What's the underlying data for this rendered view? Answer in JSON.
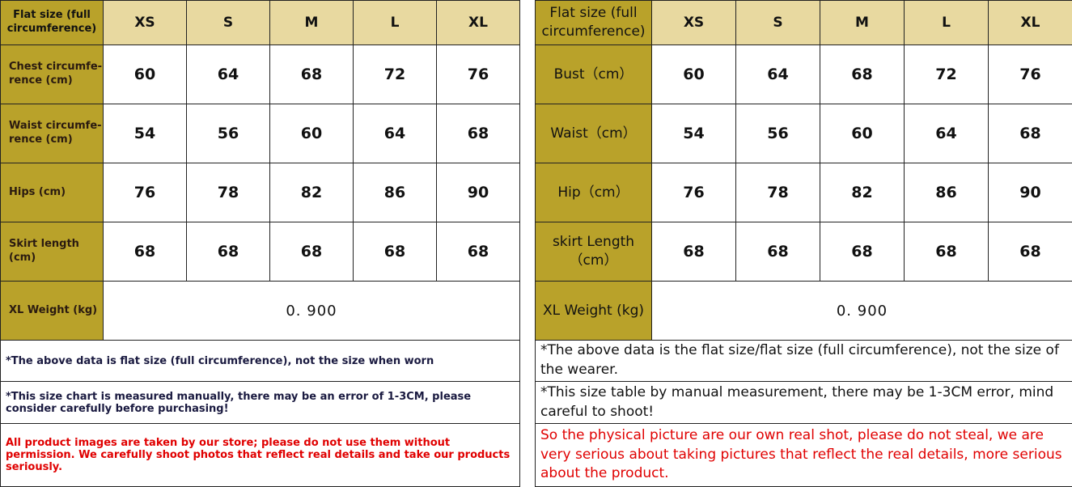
{
  "colors": {
    "label_bg": "#b9a22a",
    "header_bg": "#e8d9a0",
    "warning_text": "#e00000"
  },
  "sizes": [
    "XS",
    "S",
    "M",
    "L",
    "XL"
  ],
  "left": {
    "corner": "Flat size (full circumference)",
    "rows": [
      {
        "label": "Chest circumfe-rence (cm)",
        "values": [
          "60",
          "64",
          "68",
          "72",
          "76"
        ]
      },
      {
        "label": "Waist circumfe-rence (cm)",
        "values": [
          "54",
          "56",
          "60",
          "64",
          "68"
        ]
      },
      {
        "label": "Hips (cm)",
        "values": [
          "76",
          "78",
          "82",
          "86",
          "90"
        ]
      },
      {
        "label": "Skirt length (cm)",
        "values": [
          "68",
          "68",
          "68",
          "68",
          "68"
        ]
      }
    ],
    "weight_label": "XL Weight (kg)",
    "weight_value": "0. 900",
    "notes": [
      "*The above data is flat size (full circumference), not the size when worn",
      "*This size chart is measured manually, there may be an error of 1-3CM, please consider carefully before purchasing!",
      "All product images are taken by our store; please do not use them without permission. We carefully shoot photos that reflect real details and take our products seriously."
    ]
  },
  "right": {
    "corner": "Flat size (full circumference)",
    "rows": [
      {
        "label": "Bust（cm）",
        "values": [
          "60",
          "64",
          "68",
          "72",
          "76"
        ]
      },
      {
        "label": "Waist（cm）",
        "values": [
          "54",
          "56",
          "60",
          "64",
          "68"
        ]
      },
      {
        "label": "Hip（cm）",
        "values": [
          "76",
          "78",
          "82",
          "86",
          "90"
        ]
      },
      {
        "label": "skirt Length（cm）",
        "values": [
          "68",
          "68",
          "68",
          "68",
          "68"
        ]
      }
    ],
    "weight_label": "XL Weight (kg)",
    "weight_value": "0. 900",
    "notes": [
      "*The above data is the flat size/flat size (full circumference), not the size of the wearer.",
      "*This size table by manual measurement, there may be 1-3CM error, mind careful to shoot!",
      "So the physical picture are our own real shot, please do not steal, we are very serious about taking pictures that reflect the real details, more serious about the product."
    ]
  }
}
